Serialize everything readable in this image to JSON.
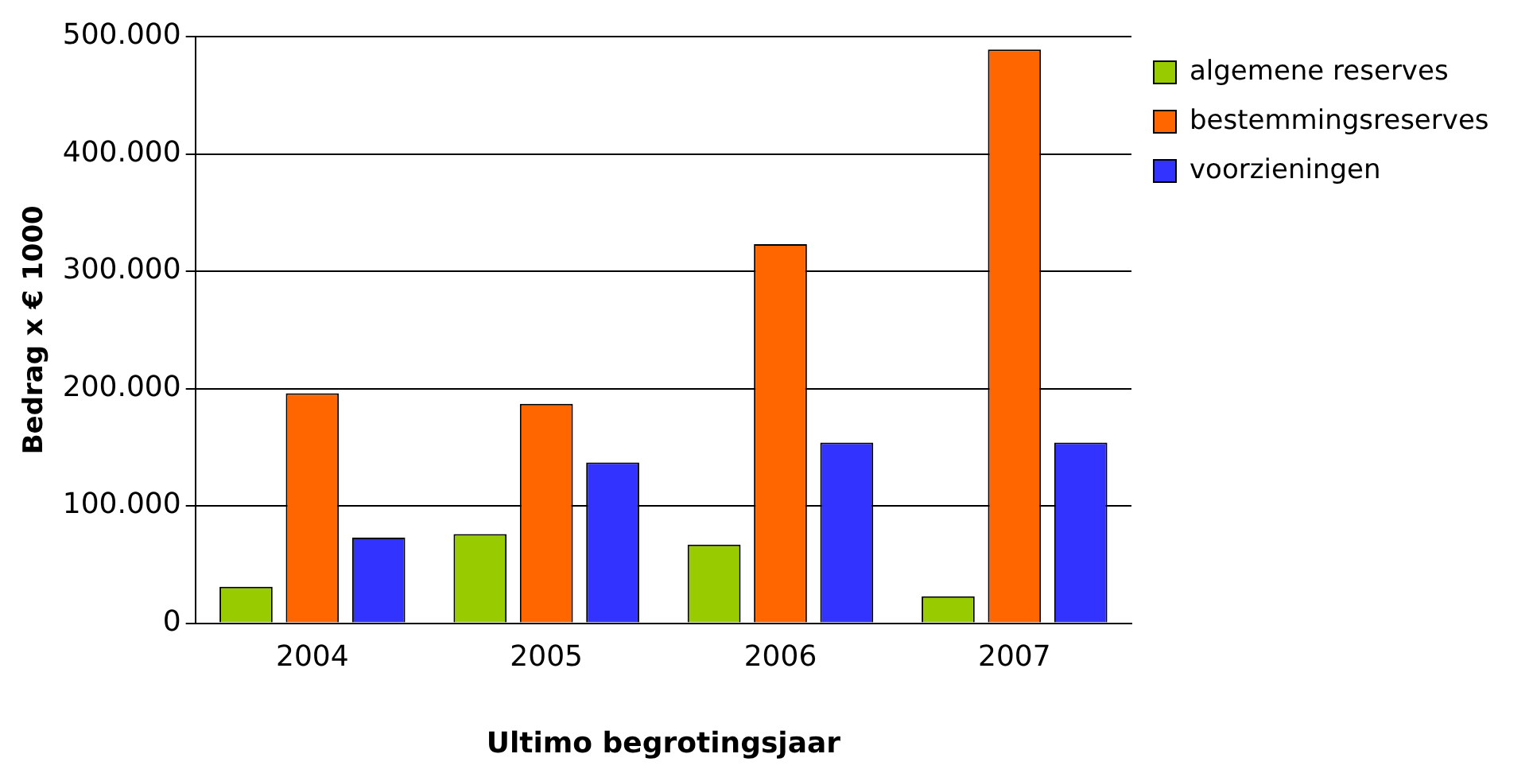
{
  "chart_data": {
    "type": "bar",
    "xlabel": "Ultimo begrotingsjaar",
    "ylabel": "Bedrag x € 1000",
    "categories": [
      "2004",
      "2005",
      "2006",
      "2007"
    ],
    "series": [
      {
        "name": "algemene reserves",
        "color": "#99cc00",
        "values": [
          31000,
          76000,
          67000,
          23000
        ]
      },
      {
        "name": "bestemmingsreserves",
        "color": "#ff6600",
        "values": [
          196000,
          187000,
          323000,
          489000
        ]
      },
      {
        "name": "voorzieningen",
        "color": "#3333ff",
        "values": [
          73000,
          137000,
          154000,
          154000
        ]
      }
    ],
    "ylim": [
      0,
      500000
    ],
    "yticks": [
      0,
      {
        "value": 100000,
        "label": "100.000"
      },
      {
        "value": 200000,
        "label": "200.000"
      },
      {
        "value": 300000,
        "label": "300.000"
      },
      {
        "value": 400000,
        "label": "400.000"
      },
      {
        "value": 500000,
        "label": "500.000"
      }
    ],
    "grid": "y",
    "legend": "right"
  }
}
